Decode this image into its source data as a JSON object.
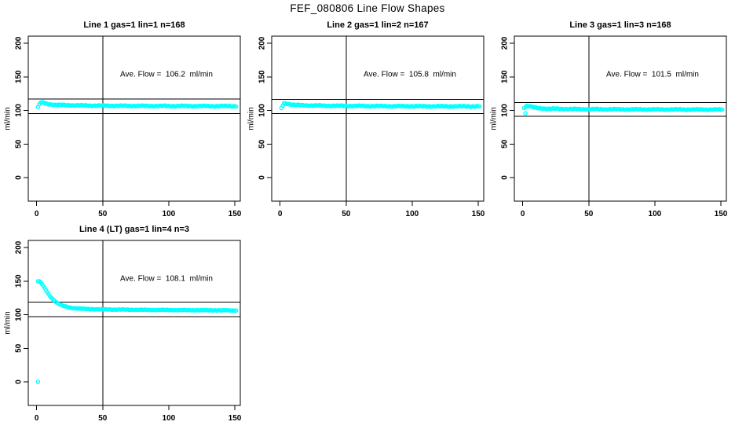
{
  "page_title": "FEF_080806  Line Flow Shapes",
  "colors": {
    "points": "#00ffff",
    "lines": "#000000",
    "background": "#ffffff",
    "text": "#000000"
  },
  "chart_data": {
    "type": "scatter",
    "title": "FEF_080806  Line Flow Shapes",
    "xlabel": "",
    "ylabel": "ml/min",
    "x_ticks": [
      0,
      50,
      100,
      150
    ],
    "y_ticks": [
      0,
      50,
      100,
      150,
      200
    ],
    "xlim": [
      -6,
      154
    ],
    "ylim": [
      -35,
      210
    ],
    "grid": false,
    "vline_x": 50,
    "point_color": "#00ffff",
    "panels": [
      {
        "title": "Line 1 gas=1 lin=1 n=168",
        "flow_label": "Ave. Flow =  106.2  ml/min",
        "ave_flow": 106.2,
        "ref_upper": 116.8,
        "ref_lower": 95.6,
        "x_start": 1,
        "x_end": 151,
        "x_step": 1,
        "trend": [
          [
            1,
            104.5
          ],
          [
            2,
            109.0
          ],
          [
            3,
            111.5
          ],
          [
            5,
            111.5
          ],
          [
            8,
            109.6
          ],
          [
            12,
            108.6
          ],
          [
            20,
            107.9
          ],
          [
            40,
            107.1
          ],
          [
            80,
            106.6
          ],
          [
            151,
            106.3
          ]
        ],
        "noise": 0.8,
        "outliers": []
      },
      {
        "title": "Line 2 gas=1 lin=2 n=167",
        "flow_label": "Ave. Flow =  105.8  ml/min",
        "ave_flow": 105.8,
        "ref_upper": 116.4,
        "ref_lower": 95.2,
        "x_start": 1,
        "x_end": 151,
        "x_step": 1,
        "trend": [
          [
            1,
            103.0
          ],
          [
            2,
            107.5
          ],
          [
            3,
            110.5
          ],
          [
            5,
            110.3
          ],
          [
            8,
            108.8
          ],
          [
            12,
            108.1
          ],
          [
            20,
            107.4
          ],
          [
            40,
            106.8
          ],
          [
            80,
            106.3
          ],
          [
            151,
            105.9
          ]
        ],
        "noise": 0.8,
        "outliers": []
      },
      {
        "title": "Line 3 gas=1 lin=3 n=168",
        "flow_label": "Ave. Flow =  101.5  ml/min",
        "ave_flow": 101.5,
        "ref_upper": 111.7,
        "ref_lower": 91.4,
        "x_start": 1,
        "x_end": 151,
        "x_step": 1,
        "trend": [
          [
            1,
            104.0
          ],
          [
            3,
            106.8
          ],
          [
            5,
            106.5
          ],
          [
            8,
            104.6
          ],
          [
            12,
            103.2
          ],
          [
            20,
            102.5
          ],
          [
            40,
            101.9
          ],
          [
            80,
            101.5
          ],
          [
            151,
            101.2
          ]
        ],
        "noise": 0.8,
        "outliers": [
          [
            2,
            95.5
          ]
        ]
      },
      {
        "title": "Line 4 (LT) gas=1 lin=4 n=3",
        "flow_label": "Ave. Flow =  108.1  ml/min",
        "ave_flow": 108.1,
        "ref_upper": 118.9,
        "ref_lower": 97.3,
        "x_start": 1,
        "x_end": 151,
        "x_step": 1,
        "trend": [
          [
            1,
            150.0
          ],
          [
            2,
            149.5
          ],
          [
            3,
            148.0
          ],
          [
            4,
            145.5
          ],
          [
            5,
            142.5
          ],
          [
            6,
            139.5
          ],
          [
            7,
            136.5
          ],
          [
            8,
            133.5
          ],
          [
            9,
            130.5
          ],
          [
            10,
            128.0
          ],
          [
            12,
            123.5
          ],
          [
            14,
            120.0
          ],
          [
            16,
            117.0
          ],
          [
            18,
            114.8
          ],
          [
            20,
            113.0
          ],
          [
            24,
            111.0
          ],
          [
            28,
            109.8
          ],
          [
            35,
            108.7
          ],
          [
            50,
            107.8
          ],
          [
            80,
            107.2
          ],
          [
            120,
            106.7
          ],
          [
            151,
            106.3
          ]
        ],
        "noise": 0.5,
        "outliers": [
          [
            1,
            0
          ]
        ]
      }
    ]
  }
}
